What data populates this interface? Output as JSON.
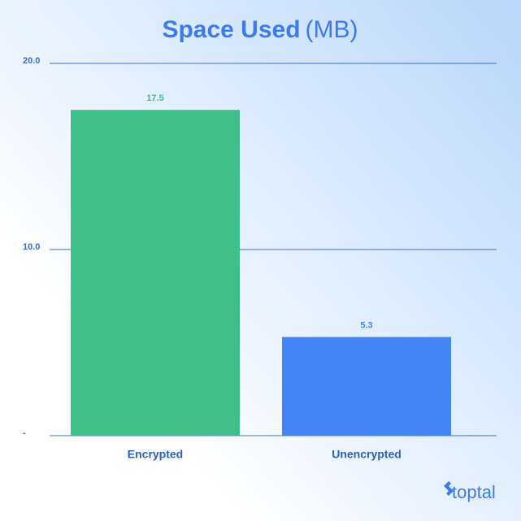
{
  "chart_data": {
    "type": "bar",
    "title": "Space Used",
    "title_unit": "(MB)",
    "categories": [
      "Encrypted",
      "Unencrypted"
    ],
    "values": [
      17.5,
      5.3
    ],
    "colors": [
      "#3dbf87",
      "#4385f5"
    ],
    "ylim": [
      0,
      20
    ],
    "yticks": [
      {
        "value": 0,
        "label": "-"
      },
      {
        "value": 10,
        "label": "10.0"
      },
      {
        "value": 20,
        "label": "20.0"
      }
    ],
    "grid": true,
    "watermark": "toptal"
  }
}
